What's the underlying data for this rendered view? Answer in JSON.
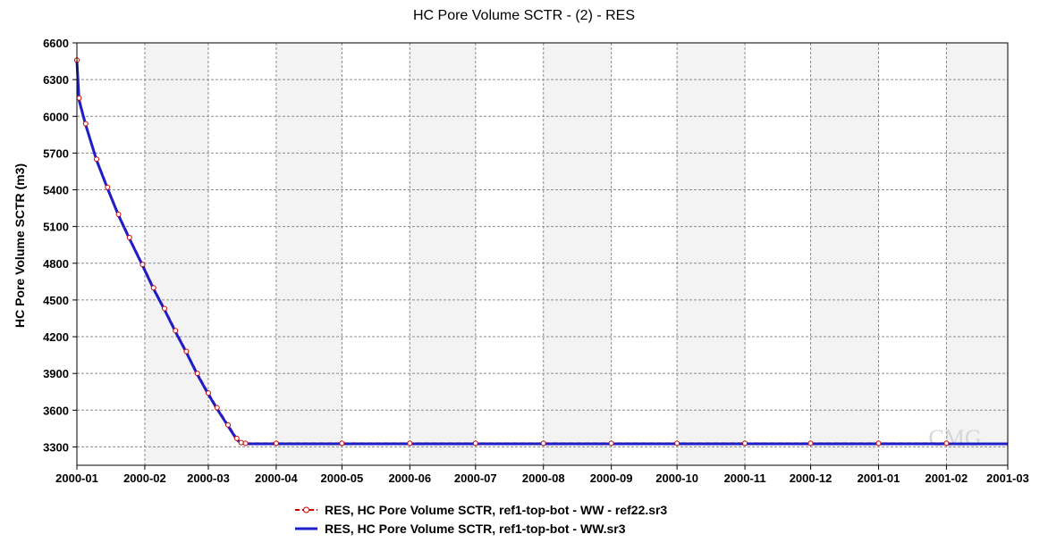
{
  "chart_data": {
    "type": "line",
    "title": "HC Pore Volume SCTR - (2) - RES",
    "xlabel": "",
    "ylabel": "HC Pore Volume SCTR (m3)",
    "x_tick_labels": [
      "2000-01",
      "2000-02",
      "2000-03",
      "2000-04",
      "2000-05",
      "2000-06",
      "2000-07",
      "2000-08",
      "2000-09",
      "2000-10",
      "2000-11",
      "2000-12",
      "2001-01",
      "2001-02",
      "2001-03"
    ],
    "xlim": [
      "2000-01-01",
      "2001-03-01"
    ],
    "y_ticks": [
      3300,
      3600,
      3900,
      4200,
      4500,
      4800,
      5100,
      5400,
      5700,
      6000,
      6300,
      6600
    ],
    "ylim": [
      3150,
      6600
    ],
    "grid": true,
    "alternating_month_shading": true,
    "legend_position": "bottom",
    "series": [
      {
        "name": "RES, HC Pore Volume SCTR, ref1-top-bot - WW - ref22.sr3",
        "color": "#cc0000",
        "style": "dashed-with-circle-markers",
        "x": [
          "2000-01-01",
          "2000-01-02",
          "2000-01-05",
          "2000-01-10",
          "2000-01-15",
          "2000-01-20",
          "2000-01-25",
          "2000-01-31",
          "2000-02-05",
          "2000-02-10",
          "2000-02-15",
          "2000-02-20",
          "2000-02-25",
          "2000-03-01",
          "2000-03-05",
          "2000-03-10",
          "2000-03-14",
          "2000-03-16",
          "2000-03-18",
          "2000-04-01",
          "2000-05-01",
          "2000-06-01",
          "2000-07-01",
          "2000-08-01",
          "2000-09-01",
          "2000-10-01",
          "2000-11-01",
          "2000-12-01",
          "2001-01-01",
          "2001-02-01"
        ],
        "values": [
          6460,
          6150,
          5940,
          5650,
          5420,
          5200,
          5010,
          4790,
          4600,
          4430,
          4250,
          4080,
          3900,
          3740,
          3620,
          3480,
          3370,
          3335,
          3330,
          3330,
          3330,
          3330,
          3330,
          3330,
          3330,
          3330,
          3330,
          3330,
          3330,
          3330
        ]
      },
      {
        "name": "RES, HC Pore Volume SCTR, ref1-top-bot - WW.sr3",
        "color": "#1f1fc8",
        "style": "solid",
        "x": [
          "2000-01-01",
          "2000-01-02",
          "2000-01-05",
          "2000-01-10",
          "2000-01-15",
          "2000-01-20",
          "2000-01-25",
          "2000-01-31",
          "2000-02-05",
          "2000-02-10",
          "2000-02-15",
          "2000-02-20",
          "2000-02-25",
          "2000-03-01",
          "2000-03-05",
          "2000-03-10",
          "2000-03-14",
          "2000-03-16",
          "2000-03-18",
          "2000-04-01",
          "2000-05-01",
          "2000-06-01",
          "2000-07-01",
          "2000-08-01",
          "2000-09-01",
          "2000-10-01",
          "2000-11-01",
          "2000-12-01",
          "2001-01-01",
          "2001-02-01",
          "2001-03-01"
        ],
        "values": [
          6450,
          6130,
          5930,
          5640,
          5410,
          5190,
          5000,
          4780,
          4590,
          4420,
          4240,
          4070,
          3890,
          3730,
          3610,
          3470,
          3360,
          3330,
          3325,
          3325,
          3325,
          3325,
          3325,
          3325,
          3325,
          3325,
          3325,
          3325,
          3325,
          3325,
          3325
        ]
      }
    ]
  },
  "watermark": {
    "text": "CMG"
  },
  "colors": {
    "shade": "#f3f3f3",
    "grid": "#8c8c8c",
    "frame": "#000000"
  }
}
